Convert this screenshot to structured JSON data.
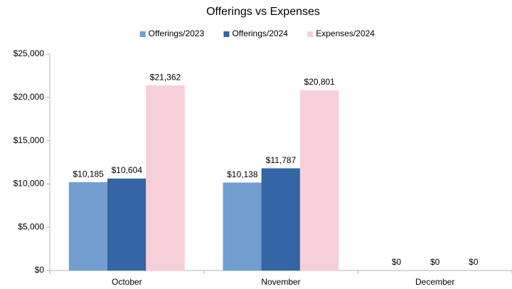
{
  "chart_data": {
    "type": "bar",
    "title": "Offerings vs Expenses",
    "categories": [
      "October",
      "November",
      "December"
    ],
    "series": [
      {
        "name": "Offerings/2023",
        "color": "#729fcf",
        "values": [
          10185,
          10138,
          0
        ],
        "value_labels": [
          "$10,185",
          "$10,138",
          "$0"
        ]
      },
      {
        "name": "Offerings/2024",
        "color": "#3465a4",
        "values": [
          10604,
          11787,
          0
        ],
        "value_labels": [
          "$10,604",
          "$11,787",
          "$0"
        ]
      },
      {
        "name": "Expenses/2024",
        "color": "#f7cfd8",
        "values": [
          21362,
          20801,
          0
        ],
        "value_labels": [
          "$21,362",
          "$20,801",
          "$0"
        ]
      }
    ],
    "ylim": [
      0,
      25000
    ],
    "yticks": [
      {
        "value": 0,
        "label": "$0"
      },
      {
        "value": 5000,
        "label": "$5,000"
      },
      {
        "value": 10000,
        "label": "$10,000"
      },
      {
        "value": 15000,
        "label": "$15,000"
      },
      {
        "value": 20000,
        "label": "$20,000"
      },
      {
        "value": 25000,
        "label": "$25,000"
      }
    ],
    "grid": false,
    "legend": "top"
  }
}
